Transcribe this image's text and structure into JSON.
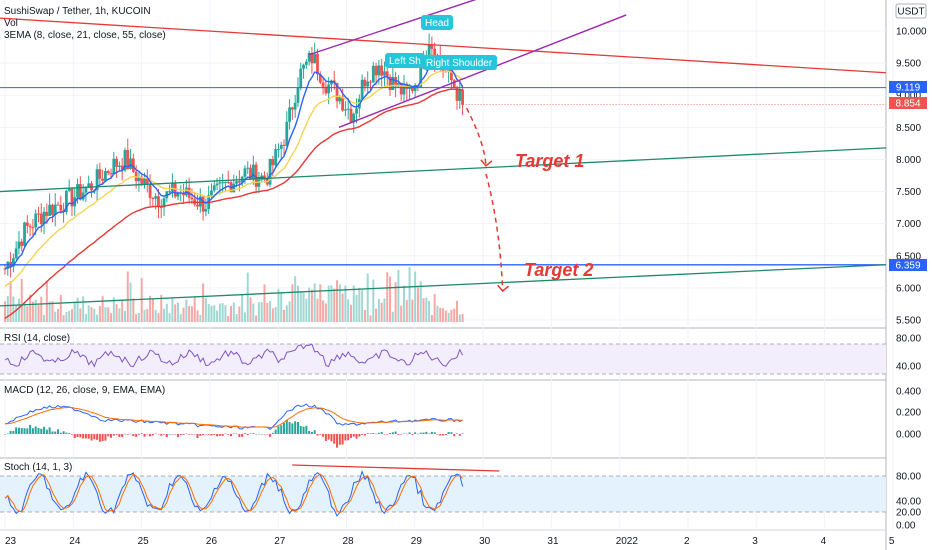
{
  "header": {
    "symbol_line": "SushiSwap / Tether, 1h, KUCOIN",
    "vol_label": "Vol",
    "ema_label": "3EMA (8, close, 21, close, 55, close)",
    "currency_badge": "USDT"
  },
  "panes": {
    "rsi_label": "RSI (14, close)",
    "macd_label": "MACD (12, 26, close, 9, EMA, EMA)",
    "stoch_label": "Stoch (14, 1, 3)"
  },
  "annotations": {
    "head": "Head",
    "left_shoulder": "Left Sh",
    "right_shoulder": "Right Shoulder",
    "target1": "Target 1",
    "target2": "Target 2"
  },
  "price_tags": {
    "level_upper": "9.119",
    "last_price": "8.854",
    "level_lower": "6.359"
  },
  "colors": {
    "bull": "#26a69a",
    "bear": "#ef5350",
    "ema_fast": "#2962ff",
    "ema_mid": "#f5d453",
    "ema_slow": "#e53935",
    "channel": "#9c27b0",
    "support": "#1e8a6b",
    "horizontal": "#2962ff",
    "trend": "#e53935",
    "label_bg": "#26c6da"
  },
  "chart_data": [
    {
      "type": "line",
      "title": "SushiSwap / Tether, 1h, KUCOIN",
      "y_ticks": [
        "10.000",
        "9.500",
        "9.000",
        "8.500",
        "8.000",
        "7.500",
        "7.000",
        "6.500",
        "6.000",
        "5.500"
      ],
      "x_ticks": [
        "23",
        "24",
        "25",
        "26",
        "27",
        "28",
        "29",
        "30",
        "31",
        "2022",
        "2",
        "3",
        "4",
        "5"
      ],
      "series": [
        {
          "name": "SushiSwap / Tether",
          "x": [
            23,
            23.3,
            23.6,
            24,
            24.3,
            24.6,
            24.8,
            25,
            25.3,
            25.6,
            26,
            26.3,
            26.6,
            26.9,
            27,
            27.2,
            27.4,
            27.6,
            27.8,
            28,
            28.2,
            28.4,
            28.6,
            28.8,
            29,
            29.2,
            29.35,
            29.5,
            29.7,
            29.85
          ],
          "values": [
            6.3,
            6.9,
            7.2,
            7.4,
            7.6,
            7.9,
            8.0,
            7.7,
            7.4,
            7.5,
            7.3,
            7.6,
            7.8,
            7.7,
            7.9,
            8.4,
            9.3,
            9.6,
            9.2,
            9.0,
            8.7,
            9.3,
            9.5,
            9.2,
            9.0,
            9.3,
            9.9,
            9.5,
            9.2,
            8.85
          ]
        }
      ],
      "levels": [
        9.119,
        8.854,
        6.359
      ]
    },
    {
      "type": "line",
      "title": "RSI (14, close)",
      "y_ticks": [
        "80.00",
        "40.00"
      ]
    },
    {
      "type": "bar",
      "title": "MACD (12, 26, close, 9, EMA, EMA)",
      "y_ticks": [
        "0.400",
        "0.200",
        "0.000"
      ]
    },
    {
      "type": "line",
      "title": "Stoch (14, 1, 3)",
      "y_ticks": [
        "80.00",
        "40.00",
        "20.00",
        "0.00"
      ]
    }
  ]
}
